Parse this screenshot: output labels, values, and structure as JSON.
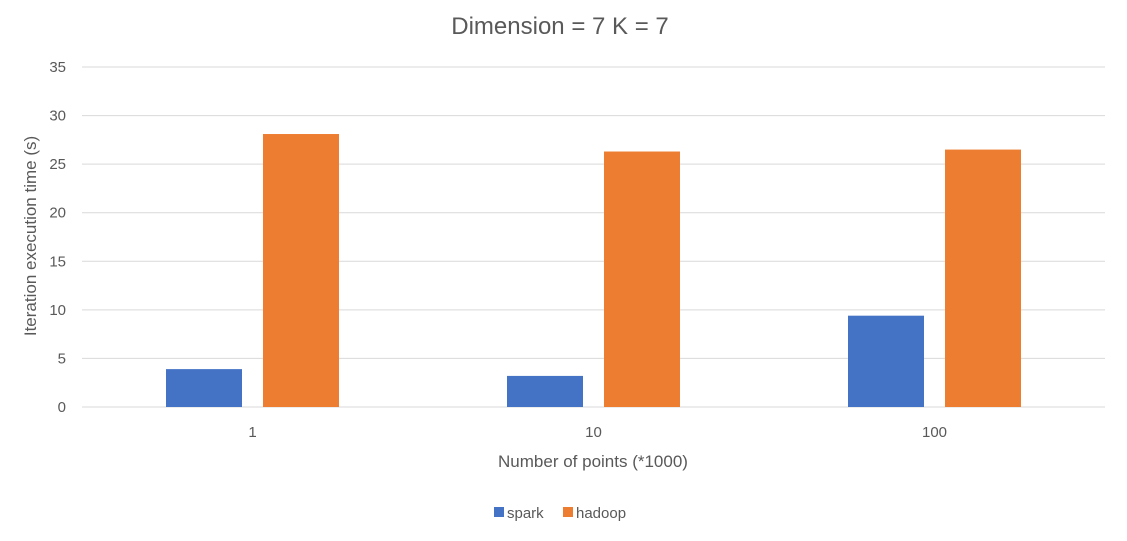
{
  "chart_data": {
    "type": "bar",
    "title": "Dimension = 7 K = 7",
    "xlabel": "Number of points (*1000)",
    "ylabel": "Iteration execution time (s)",
    "categories": [
      "1",
      "10",
      "100"
    ],
    "series": [
      {
        "name": "spark",
        "color": "#4472c4",
        "values": [
          3.9,
          3.2,
          9.4
        ]
      },
      {
        "name": "hadoop",
        "color": "#ed7d31",
        "values": [
          28.1,
          26.3,
          26.5
        ]
      }
    ],
    "ylim": [
      0,
      35
    ],
    "yticks": [
      0,
      5,
      10,
      15,
      20,
      25,
      30,
      35
    ],
    "grid": true,
    "legend_position": "bottom"
  }
}
